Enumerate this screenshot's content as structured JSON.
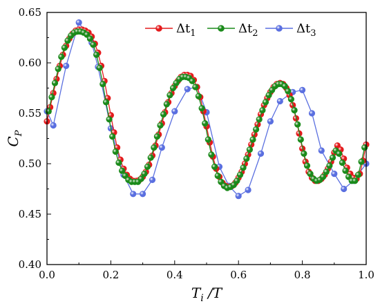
{
  "colors": {
    "dt1": "#e41a1c",
    "dt2": "#1a8a1a",
    "dt3": "#5a6fe0",
    "axis": "#000000"
  },
  "chart_data": {
    "type": "line",
    "xlabel_main": "T",
    "xlabel_sub": "i",
    "xlabel_tail": " /T",
    "ylabel_main": "C",
    "ylabel_sub": "P",
    "xlim": [
      0.0,
      1.0
    ],
    "ylim": [
      0.4,
      0.65
    ],
    "xticks": [
      0.0,
      0.2,
      0.4,
      0.6,
      0.8,
      1.0
    ],
    "xtick_labels": [
      "0.0",
      "0.2",
      "0.4",
      "0.6",
      "0.8",
      "1.0"
    ],
    "yticks": [
      0.4,
      0.45,
      0.5,
      0.55,
      0.6,
      0.65
    ],
    "ytick_labels": [
      "0.40",
      "0.45",
      "0.50",
      "0.55",
      "0.60",
      "0.65"
    ],
    "legend_position": "top-right",
    "series": [
      {
        "key": "dt1",
        "label_main": "Δt",
        "label_sub": "1",
        "x": [
          0.0,
          0.01,
          0.02,
          0.03,
          0.04,
          0.05,
          0.06,
          0.07,
          0.08,
          0.09,
          0.1,
          0.11,
          0.12,
          0.13,
          0.14,
          0.15,
          0.16,
          0.17,
          0.18,
          0.19,
          0.2,
          0.21,
          0.22,
          0.23,
          0.24,
          0.25,
          0.26,
          0.27,
          0.28,
          0.29,
          0.3,
          0.31,
          0.32,
          0.33,
          0.34,
          0.35,
          0.36,
          0.37,
          0.38,
          0.39,
          0.4,
          0.41,
          0.42,
          0.43,
          0.44,
          0.45,
          0.46,
          0.47,
          0.48,
          0.49,
          0.5,
          0.51,
          0.52,
          0.53,
          0.54,
          0.55,
          0.56,
          0.57,
          0.58,
          0.59,
          0.6,
          0.61,
          0.62,
          0.63,
          0.64,
          0.65,
          0.66,
          0.67,
          0.68,
          0.69,
          0.7,
          0.71,
          0.72,
          0.73,
          0.74,
          0.75,
          0.76,
          0.77,
          0.78,
          0.79,
          0.8,
          0.81,
          0.82,
          0.83,
          0.84,
          0.85,
          0.86,
          0.87,
          0.88,
          0.89,
          0.9,
          0.91,
          0.92,
          0.93,
          0.94,
          0.95,
          0.96,
          0.97,
          0.98,
          0.99,
          1.0
        ],
        "y": [
          0.542,
          0.556,
          0.57,
          0.584,
          0.597,
          0.608,
          0.617,
          0.624,
          0.629,
          0.632,
          0.633,
          0.633,
          0.632,
          0.63,
          0.626,
          0.619,
          0.61,
          0.597,
          0.582,
          0.565,
          0.548,
          0.531,
          0.516,
          0.504,
          0.495,
          0.489,
          0.485,
          0.483,
          0.483,
          0.484,
          0.487,
          0.492,
          0.499,
          0.508,
          0.518,
          0.529,
          0.54,
          0.551,
          0.561,
          0.57,
          0.577,
          0.582,
          0.586,
          0.588,
          0.588,
          0.587,
          0.583,
          0.576,
          0.566,
          0.552,
          0.537,
          0.521,
          0.507,
          0.495,
          0.487,
          0.481,
          0.478,
          0.477,
          0.478,
          0.481,
          0.486,
          0.492,
          0.5,
          0.509,
          0.519,
          0.529,
          0.539,
          0.549,
          0.558,
          0.565,
          0.571,
          0.576,
          0.579,
          0.58,
          0.579,
          0.575,
          0.568,
          0.558,
          0.545,
          0.53,
          0.515,
          0.502,
          0.492,
          0.486,
          0.483,
          0.483,
          0.485,
          0.489,
          0.495,
          0.502,
          0.511,
          0.518,
          0.514,
          0.505,
          0.496,
          0.49,
          0.486,
          0.485,
          0.49,
          0.503,
          0.519
        ]
      },
      {
        "key": "dt2",
        "label_main": "Δt",
        "label_sub": "2",
        "x": [
          0.005,
          0.015,
          0.025,
          0.035,
          0.045,
          0.055,
          0.065,
          0.075,
          0.085,
          0.095,
          0.105,
          0.115,
          0.125,
          0.135,
          0.145,
          0.155,
          0.165,
          0.175,
          0.185,
          0.195,
          0.205,
          0.215,
          0.225,
          0.235,
          0.245,
          0.255,
          0.265,
          0.275,
          0.285,
          0.295,
          0.305,
          0.315,
          0.325,
          0.335,
          0.345,
          0.355,
          0.365,
          0.375,
          0.385,
          0.395,
          0.405,
          0.415,
          0.425,
          0.435,
          0.445,
          0.455,
          0.465,
          0.475,
          0.485,
          0.495,
          0.505,
          0.515,
          0.525,
          0.535,
          0.545,
          0.555,
          0.565,
          0.575,
          0.585,
          0.595,
          0.605,
          0.615,
          0.625,
          0.635,
          0.645,
          0.655,
          0.665,
          0.675,
          0.685,
          0.695,
          0.705,
          0.715,
          0.725,
          0.735,
          0.745,
          0.755,
          0.765,
          0.775,
          0.785,
          0.795,
          0.805,
          0.815,
          0.825,
          0.835,
          0.845,
          0.855,
          0.865,
          0.875,
          0.885,
          0.895,
          0.905,
          0.915,
          0.925,
          0.935,
          0.945,
          0.955,
          0.965,
          0.975,
          0.985,
          0.995
        ],
        "y": [
          0.552,
          0.566,
          0.58,
          0.594,
          0.606,
          0.615,
          0.622,
          0.627,
          0.63,
          0.631,
          0.631,
          0.63,
          0.628,
          0.624,
          0.618,
          0.608,
          0.595,
          0.579,
          0.561,
          0.544,
          0.527,
          0.512,
          0.501,
          0.493,
          0.488,
          0.484,
          0.482,
          0.482,
          0.482,
          0.485,
          0.49,
          0.497,
          0.506,
          0.516,
          0.527,
          0.538,
          0.549,
          0.559,
          0.568,
          0.575,
          0.58,
          0.584,
          0.586,
          0.586,
          0.585,
          0.582,
          0.576,
          0.567,
          0.555,
          0.54,
          0.524,
          0.509,
          0.497,
          0.488,
          0.482,
          0.478,
          0.476,
          0.477,
          0.479,
          0.483,
          0.489,
          0.496,
          0.505,
          0.514,
          0.524,
          0.534,
          0.544,
          0.553,
          0.561,
          0.568,
          0.573,
          0.577,
          0.579,
          0.579,
          0.577,
          0.572,
          0.564,
          0.553,
          0.539,
          0.524,
          0.51,
          0.498,
          0.49,
          0.485,
          0.483,
          0.484,
          0.487,
          0.492,
          0.498,
          0.506,
          0.513,
          0.51,
          0.501,
          0.493,
          0.487,
          0.483,
          0.483,
          0.489,
          0.502,
          0.516
        ]
      },
      {
        "key": "dt3",
        "label_main": "Δt",
        "label_sub": "3",
        "x": [
          0.0,
          0.02,
          0.06,
          0.1,
          0.14,
          0.16,
          0.2,
          0.24,
          0.27,
          0.3,
          0.33,
          0.36,
          0.4,
          0.44,
          0.47,
          0.5,
          0.54,
          0.57,
          0.6,
          0.63,
          0.67,
          0.7,
          0.73,
          0.77,
          0.8,
          0.83,
          0.86,
          0.9,
          0.93,
          0.96,
          1.0
        ],
        "y": [
          0.552,
          0.538,
          0.597,
          0.64,
          0.62,
          0.596,
          0.535,
          0.489,
          0.47,
          0.47,
          0.484,
          0.516,
          0.552,
          0.574,
          0.576,
          0.551,
          0.497,
          0.478,
          0.468,
          0.474,
          0.51,
          0.542,
          0.562,
          0.571,
          0.573,
          0.55,
          0.513,
          0.49,
          0.475,
          0.483,
          0.5
        ]
      }
    ]
  }
}
